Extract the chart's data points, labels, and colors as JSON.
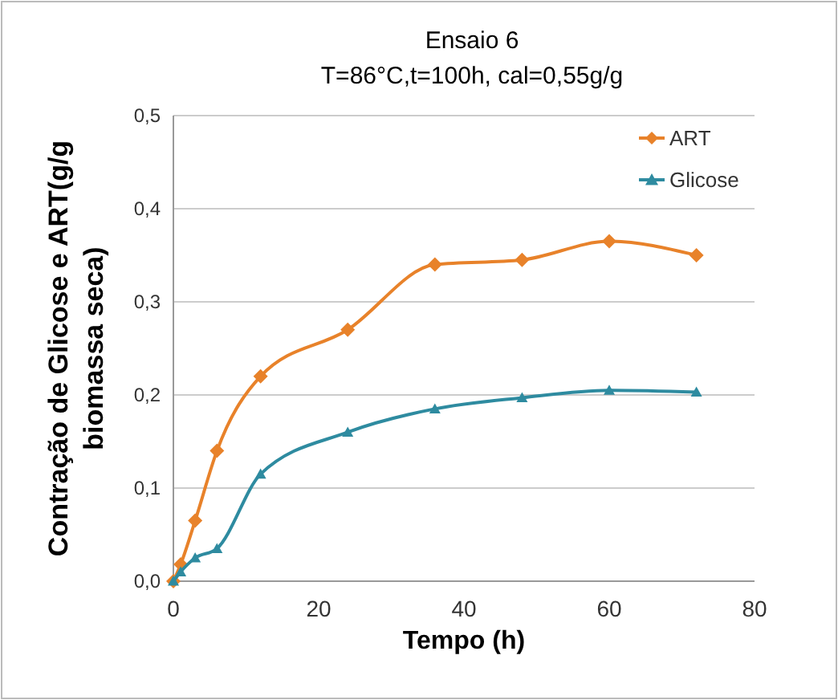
{
  "chart_data": {
    "type": "line",
    "title": "Ensaio 6",
    "subtitle": "T=86°C,t=100h, cal=0,55g/g",
    "xlabel": "Tempo (h)",
    "ylabel": "Contração de Glicose e ART(g/g biomassa seca)",
    "x": [
      0,
      1,
      3,
      6,
      12,
      24,
      36,
      48,
      60,
      72
    ],
    "series": [
      {
        "name": "ART",
        "color": "#e8822a",
        "marker": "diamond",
        "values": [
          0,
          0.018,
          0.065,
          0.14,
          0.22,
          0.27,
          0.34,
          0.345,
          0.365,
          0.35
        ]
      },
      {
        "name": "Glicose",
        "color": "#2e8ba0",
        "marker": "triangle",
        "values": [
          0,
          0.01,
          0.025,
          0.035,
          0.115,
          0.16,
          0.185,
          0.197,
          0.205,
          0.203
        ]
      }
    ],
    "xlim": [
      0,
      80
    ],
    "xticks": [
      0,
      20,
      40,
      60,
      80
    ],
    "ylim": [
      0,
      0.5
    ],
    "yticks": [
      {
        "value": 0,
        "label": "0,0"
      },
      {
        "value": 0.1,
        "label": "0,1"
      },
      {
        "value": 0.2,
        "label": "0,2"
      },
      {
        "value": 0.3,
        "label": "0,3"
      },
      {
        "value": 0.4,
        "label": "0,4"
      },
      {
        "value": 0.5,
        "label": "0,5"
      }
    ],
    "grid": "y",
    "legend": "top right"
  }
}
